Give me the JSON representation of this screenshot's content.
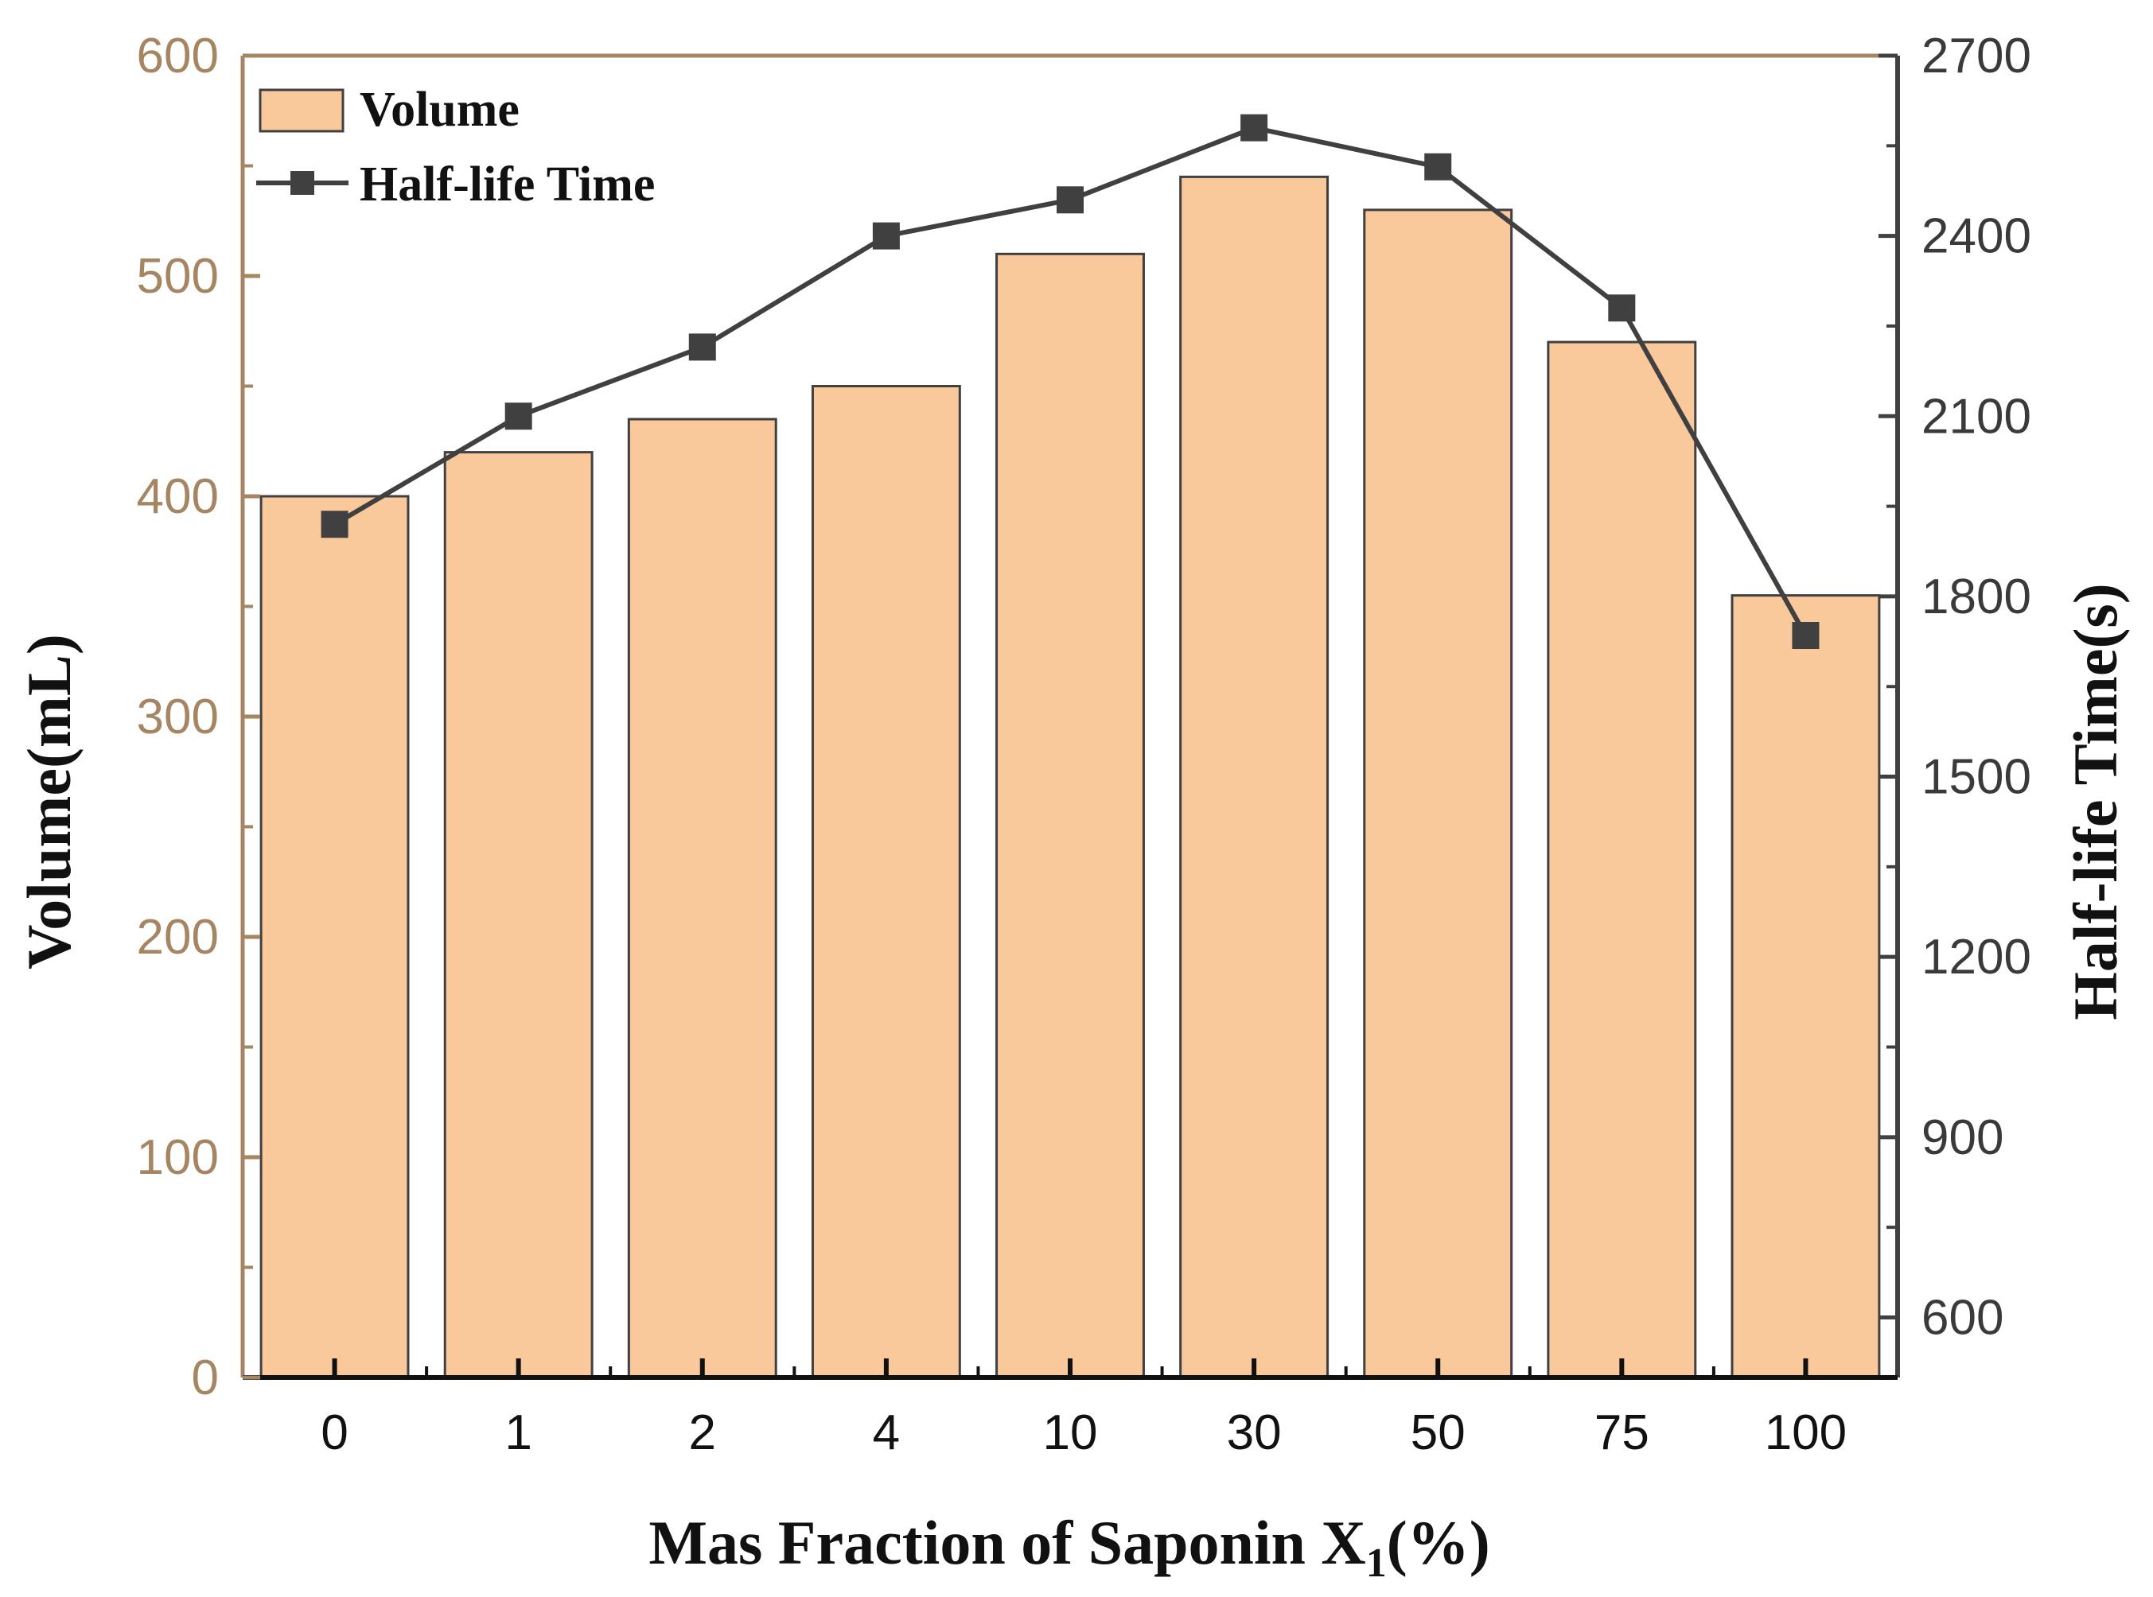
{
  "chart_data": {
    "type": "bar+line",
    "categories": [
      "0",
      "1",
      "2",
      "4",
      "10",
      "30",
      "50",
      "75",
      "100"
    ],
    "series": [
      {
        "name": "Volume",
        "type": "bar",
        "axis": "left",
        "color": "#F9C89B",
        "values": [
          400,
          420,
          435,
          450,
          510,
          545,
          530,
          470,
          355
        ]
      },
      {
        "name": "Half-life Time",
        "type": "line",
        "axis": "right",
        "color": "#404040",
        "marker": "square",
        "values": [
          1920,
          2100,
          2215,
          2400,
          2460,
          2580,
          2515,
          2280,
          1735
        ]
      }
    ],
    "xlabel_main": "Mas Fraction of Saponin X",
    "xlabel_sub": "1",
    "xlabel_tail": "(%)",
    "ylabel_left": "Volume(mL)",
    "ylabel_right": "Half-life Time(s)",
    "ylim_left": [
      0,
      600
    ],
    "ylim_right": [
      500,
      2700
    ],
    "yticks_left": [
      0,
      100,
      200,
      300,
      400,
      500,
      600
    ],
    "yticks_right": [
      600,
      900,
      1200,
      1500,
      1800,
      2100,
      2400,
      2700
    ],
    "legend": {
      "placement": "top-left",
      "entries": [
        "Volume",
        "Half-life Time"
      ]
    },
    "colors": {
      "left_axis": "#A68562",
      "right_axis": "#404040",
      "bar_edge": "#404040"
    },
    "grid": false
  }
}
